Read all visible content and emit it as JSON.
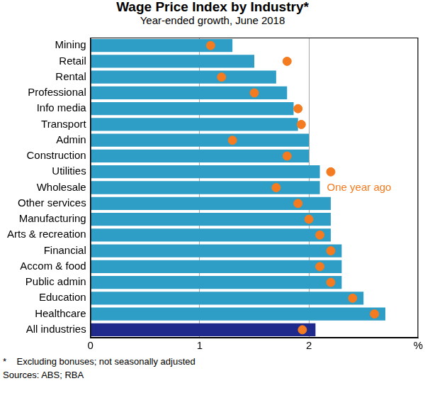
{
  "chart_data": {
    "type": "bar",
    "orientation": "horizontal",
    "title": "Wage Price Index by Industry*",
    "subtitle": "Year-ended growth, June 2018",
    "categories": [
      "Mining",
      "Retail",
      "Rental",
      "Professional",
      "Info media",
      "Transport",
      "Admin",
      "Construction",
      "Utilities",
      "Wholesale",
      "Other services",
      "Manufacturing",
      "Arts & recreation",
      "Financial",
      "Accom & food",
      "Public admin",
      "Education",
      "Healthcare",
      "All industries"
    ],
    "series": [
      {
        "type": "bar",
        "colors": [
          "#2e9ec6",
          "#2e9ec6",
          "#2e9ec6",
          "#2e9ec6",
          "#2e9ec6",
          "#2e9ec6",
          "#2e9ec6",
          "#2e9ec6",
          "#2e9ec6",
          "#2e9ec6",
          "#2e9ec6",
          "#2e9ec6",
          "#2e9ec6",
          "#2e9ec6",
          "#2e9ec6",
          "#2e9ec6",
          "#2e9ec6",
          "#2e9ec6",
          "#1f2a8c"
        ],
        "values": [
          1.3,
          1.5,
          1.7,
          1.8,
          1.86,
          1.9,
          2.0,
          2.0,
          2.1,
          2.1,
          2.2,
          2.2,
          2.2,
          2.3,
          2.3,
          2.3,
          2.5,
          2.7,
          2.06
        ]
      },
      {
        "name": "One year ago",
        "type": "scatter",
        "marker": "circle",
        "color": "#f47b20",
        "values": [
          1.1,
          1.8,
          1.2,
          1.5,
          1.9,
          1.93,
          1.3,
          1.8,
          2.2,
          1.7,
          1.9,
          2.0,
          2.1,
          2.2,
          2.1,
          2.2,
          2.4,
          2.6,
          1.94
        ]
      }
    ],
    "xlim": [
      0,
      3
    ],
    "xticks": [
      0,
      1,
      2,
      {
        "value": 3,
        "label": "%"
      }
    ],
    "grid": true,
    "notes": [
      "*    Excluding bonuses; not seasonally adjusted",
      "Sources: ABS; RBA"
    ]
  }
}
